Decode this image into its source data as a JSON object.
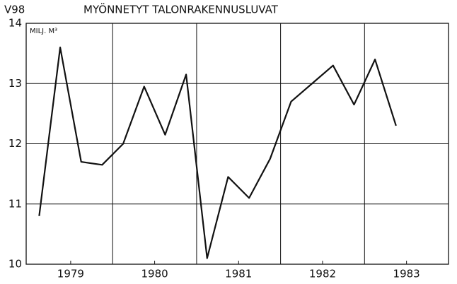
{
  "chart_data": {
    "type": "line",
    "code": "V98",
    "title": "MYÖNNETYT TALONRAKENNUSLUVAT",
    "unit": "MILJ. M³",
    "x": [
      1979.125,
      1979.375,
      1979.625,
      1979.875,
      1980.125,
      1980.375,
      1980.625,
      1980.875,
      1981.125,
      1981.375,
      1981.625,
      1981.875,
      1982.125,
      1982.375,
      1982.625,
      1982.875,
      1983.125,
      1983.375
    ],
    "series": [
      {
        "name": "MYÖNNETYT TALONRAKENNUSLUVAT",
        "color": "#111111",
        "values": [
          10.8,
          13.6,
          11.7,
          11.65,
          12.0,
          12.95,
          12.15,
          13.15,
          10.1,
          11.45,
          11.1,
          11.75,
          12.7,
          13.0,
          13.3,
          12.65,
          13.4,
          12.3
        ]
      }
    ],
    "xlim": [
      1978.97,
      1984
    ],
    "xticks": [
      {
        "value": 1979.5,
        "label": "1979"
      },
      {
        "value": 1980.5,
        "label": "1980"
      },
      {
        "value": 1981.5,
        "label": "1981"
      },
      {
        "value": 1982.5,
        "label": "1982"
      },
      {
        "value": 1983.5,
        "label": "1983"
      }
    ],
    "xgrid": [
      1980,
      1981,
      1982,
      1983
    ],
    "ylim": [
      10,
      14
    ],
    "yticks": [
      10,
      11,
      12,
      13,
      14
    ],
    "grid": true
  }
}
